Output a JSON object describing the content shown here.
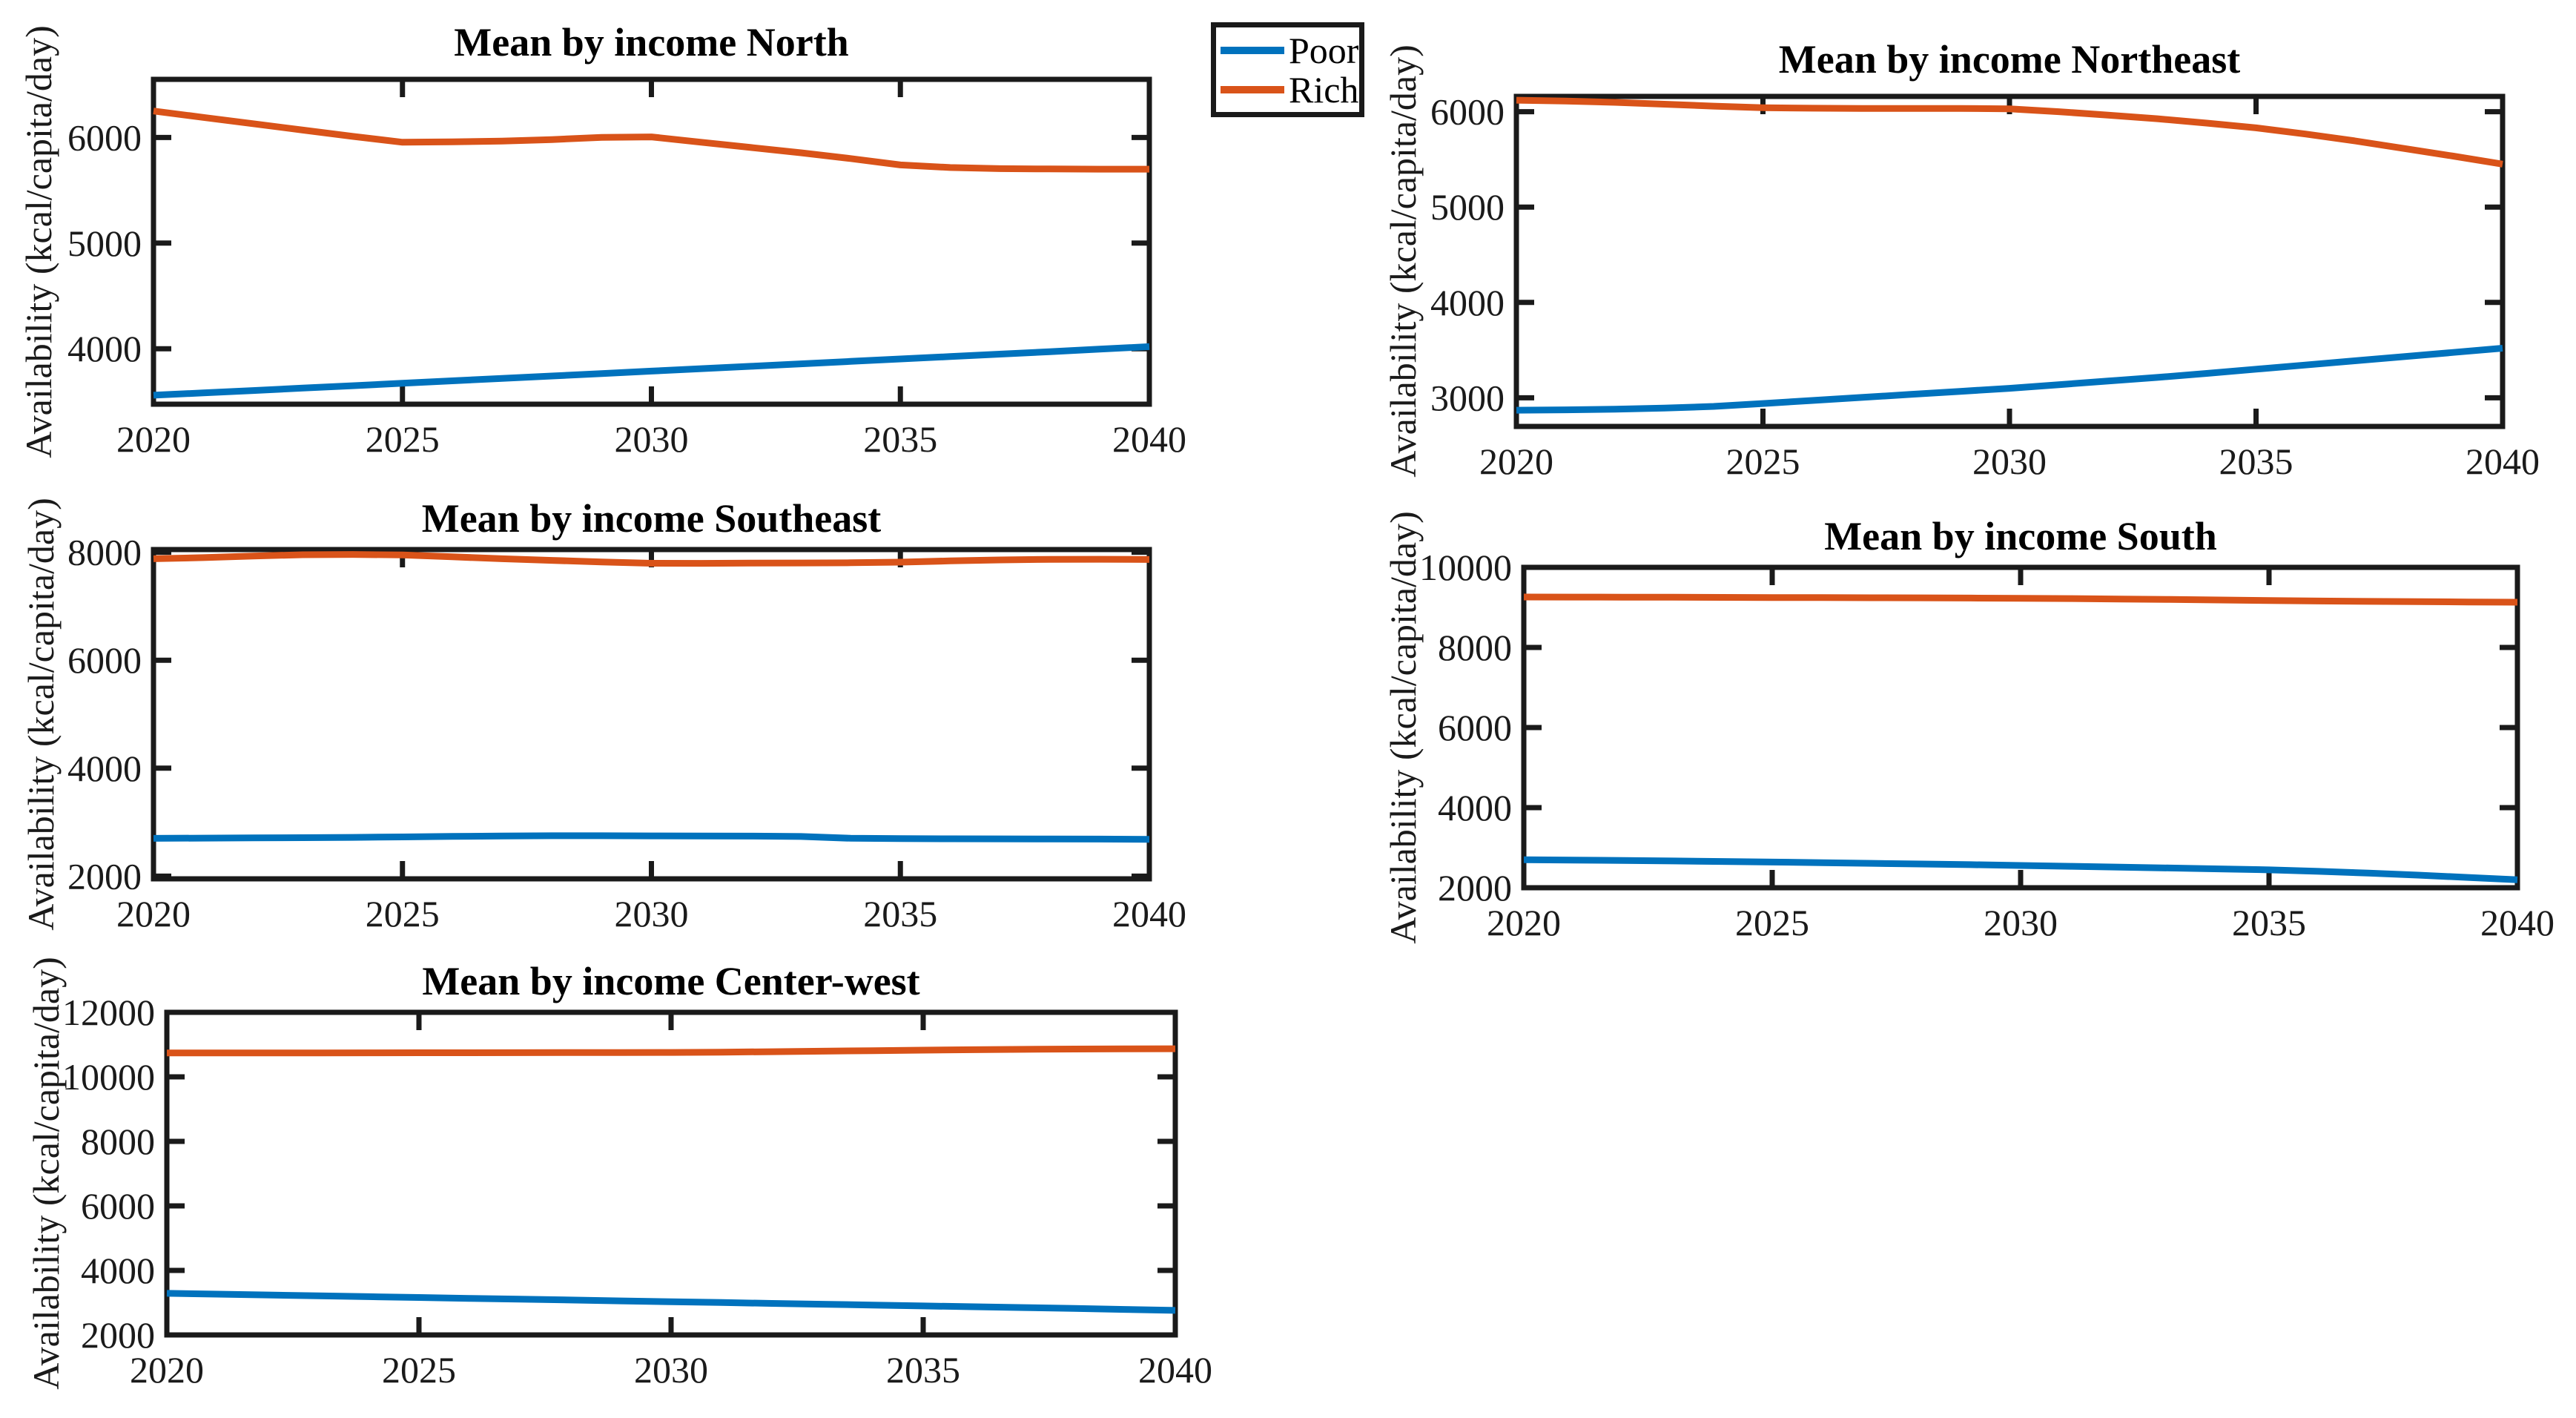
{
  "page": {
    "background": "#ffffff"
  },
  "colors": {
    "poor": "#0072BD",
    "rich": "#D95319",
    "axis": "#1a1a1a"
  },
  "legend": {
    "items": [
      {
        "label": "Poor",
        "color": "#0072BD"
      },
      {
        "label": "Rich",
        "color": "#D95319"
      }
    ]
  },
  "chart_data": [
    {
      "type": "line",
      "title": "Mean by income North",
      "xlabel": "",
      "ylabel": "Availability (kcal/capita/day)",
      "xlim": [
        2020,
        2040
      ],
      "ylim": [
        3475,
        6550
      ],
      "xticks": [
        2020,
        2025,
        2030,
        2035,
        2040
      ],
      "yticks": [
        4000,
        5000,
        6000
      ],
      "grid": false,
      "x": [
        2020,
        2021,
        2022,
        2023,
        2024,
        2025,
        2026,
        2027,
        2028,
        2029,
        2030,
        2031,
        2032,
        2033,
        2034,
        2035,
        2036,
        2037,
        2038,
        2039,
        2040
      ],
      "series": [
        {
          "name": "Poor",
          "values": [
            3560,
            3582,
            3604,
            3627,
            3650,
            3673,
            3696,
            3719,
            3742,
            3765,
            3788,
            3811,
            3834,
            3857,
            3880,
            3903,
            3926,
            3949,
            3972,
            3996,
            4020
          ]
        },
        {
          "name": "Rich",
          "values": [
            6250,
            6190,
            6130,
            6070,
            6010,
            5955,
            5958,
            5966,
            5980,
            6000,
            6005,
            5955,
            5905,
            5855,
            5800,
            5740,
            5715,
            5705,
            5702,
            5700,
            5700
          ]
        }
      ]
    },
    {
      "type": "line",
      "title": "Mean by income Northeast",
      "xlabel": "",
      "ylabel": "Availability (kcal/capita/day)",
      "xlim": [
        2020,
        2040
      ],
      "ylim": [
        2700,
        6160
      ],
      "xticks": [
        2020,
        2025,
        2030,
        2035,
        2040
      ],
      "yticks": [
        3000,
        4000,
        5000,
        6000
      ],
      "grid": false,
      "x": [
        2020,
        2021,
        2022,
        2023,
        2024,
        2025,
        2026,
        2027,
        2028,
        2029,
        2030,
        2031,
        2032,
        2033,
        2034,
        2035,
        2036,
        2037,
        2038,
        2039,
        2040
      ],
      "series": [
        {
          "name": "Poor",
          "values": [
            2870,
            2874,
            2880,
            2892,
            2910,
            2940,
            2972,
            3004,
            3036,
            3068,
            3100,
            3138,
            3176,
            3214,
            3256,
            3300,
            3344,
            3388,
            3432,
            3476,
            3520
          ]
        },
        {
          "name": "Rich",
          "values": [
            6120,
            6112,
            6098,
            6078,
            6058,
            6042,
            6036,
            6034,
            6034,
            6034,
            6030,
            6000,
            5964,
            5926,
            5880,
            5830,
            5766,
            5694,
            5614,
            5534,
            5450
          ]
        }
      ]
    },
    {
      "type": "line",
      "title": "Mean by income Southeast",
      "xlabel": "",
      "ylabel": "Availability (kcal/capita/day)",
      "xlim": [
        2020,
        2040
      ],
      "ylim": [
        1950,
        8050
      ],
      "xticks": [
        2020,
        2025,
        2030,
        2035,
        2040
      ],
      "yticks": [
        2000,
        4000,
        6000,
        8000
      ],
      "grid": false,
      "x": [
        2020,
        2021,
        2022,
        2023,
        2024,
        2025,
        2026,
        2027,
        2028,
        2029,
        2030,
        2031,
        2032,
        2033,
        2034,
        2035,
        2036,
        2037,
        2038,
        2039,
        2040
      ],
      "series": [
        {
          "name": "Poor",
          "values": [
            2700,
            2704,
            2708,
            2712,
            2718,
            2726,
            2736,
            2744,
            2748,
            2748,
            2746,
            2744,
            2742,
            2734,
            2702,
            2696,
            2692,
            2690,
            2688,
            2686,
            2682
          ]
        },
        {
          "name": "Rich",
          "values": [
            7880,
            7900,
            7930,
            7954,
            7960,
            7950,
            7916,
            7880,
            7850,
            7820,
            7796,
            7794,
            7800,
            7802,
            7806,
            7816,
            7840,
            7858,
            7868,
            7870,
            7866
          ]
        }
      ]
    },
    {
      "type": "line",
      "title": "Mean by income South",
      "xlabel": "",
      "ylabel": "Availability (kcal/capita/day)",
      "xlim": [
        2020,
        2040
      ],
      "ylim": [
        2000,
        10000
      ],
      "xticks": [
        2020,
        2025,
        2030,
        2035,
        2040
      ],
      "yticks": [
        2000,
        4000,
        6000,
        8000,
        10000
      ],
      "grid": false,
      "x": [
        2020,
        2021,
        2022,
        2023,
        2024,
        2025,
        2026,
        2027,
        2028,
        2029,
        2030,
        2031,
        2032,
        2033,
        2034,
        2035,
        2036,
        2037,
        2038,
        2039,
        2040
      ],
      "series": [
        {
          "name": "Poor",
          "values": [
            2700,
            2690,
            2680,
            2668,
            2655,
            2641,
            2626,
            2610,
            2593,
            2575,
            2556,
            2536,
            2515,
            2493,
            2470,
            2446,
            2410,
            2365,
            2315,
            2258,
            2200
          ]
        },
        {
          "name": "Rich",
          "values": [
            9260,
            9258,
            9256,
            9253,
            9250,
            9247,
            9244,
            9241,
            9238,
            9234,
            9228,
            9220,
            9210,
            9198,
            9185,
            9172,
            9160,
            9150,
            9143,
            9136,
            9130
          ]
        }
      ]
    },
    {
      "type": "line",
      "title": "Mean by income Center-west",
      "xlabel": "",
      "ylabel": "Availability (kcal/capita/day)",
      "xlim": [
        2020,
        2040
      ],
      "ylim": [
        2000,
        12000
      ],
      "xticks": [
        2020,
        2025,
        2030,
        2035,
        2040
      ],
      "yticks": [
        2000,
        4000,
        6000,
        8000,
        10000,
        12000
      ],
      "grid": false,
      "x": [
        2020,
        2021,
        2022,
        2023,
        2024,
        2025,
        2026,
        2027,
        2028,
        2029,
        2030,
        2031,
        2032,
        2033,
        2034,
        2035,
        2036,
        2037,
        2038,
        2039,
        2040
      ],
      "series": [
        {
          "name": "Poor",
          "values": [
            3290,
            3264,
            3238,
            3212,
            3186,
            3160,
            3134,
            3108,
            3082,
            3056,
            3030,
            3004,
            2978,
            2952,
            2926,
            2900,
            2874,
            2848,
            2822,
            2790,
            2760
          ]
        },
        {
          "name": "Rich",
          "values": [
            10740,
            10741,
            10742,
            10743,
            10744,
            10746,
            10748,
            10750,
            10752,
            10754,
            10757,
            10766,
            10780,
            10796,
            10812,
            10828,
            10842,
            10854,
            10862,
            10868,
            10872
          ]
        }
      ]
    }
  ]
}
